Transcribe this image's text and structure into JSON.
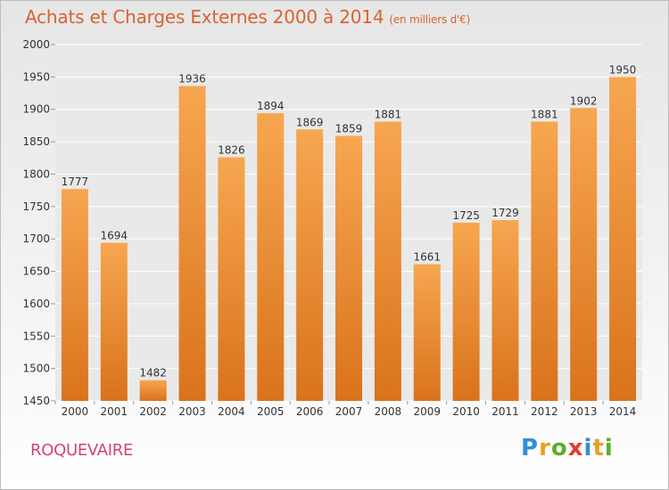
{
  "header": {
    "title": "Achats et Charges Externes 2000 à 2014",
    "subtitle": "(en milliers d'€)"
  },
  "footer": {
    "location": "ROQUEVAIRE",
    "logo": {
      "text": "Proxiti",
      "letters": [
        {
          "char": "P",
          "color": "#2f8fd8"
        },
        {
          "char": "r",
          "color": "#e8a020"
        },
        {
          "char": "o",
          "color": "#5cae2e"
        },
        {
          "char": "x",
          "color": "#e23c2c"
        },
        {
          "char": "i",
          "color": "#2f8fd8"
        },
        {
          "char": "t",
          "color": "#e8a020"
        },
        {
          "char": "i",
          "color": "#5cae2e"
        }
      ]
    }
  },
  "colors": {
    "bar_light": "#f7a650",
    "bar_dark": "#d9731c",
    "title": "#d9632f",
    "location": "#d4456a",
    "plot_background": "#e9e9e9"
  },
  "chart_data": {
    "type": "bar",
    "title": "Achats et Charges Externes 2000 à 2014",
    "subtitle": "(en milliers d'€)",
    "xlabel": "",
    "ylabel": "",
    "categories": [
      "2000",
      "2001",
      "2002",
      "2003",
      "2004",
      "2005",
      "2006",
      "2007",
      "2008",
      "2009",
      "2010",
      "2011",
      "2012",
      "2013",
      "2014"
    ],
    "values": [
      1777,
      1694,
      1482,
      1936,
      1826,
      1894,
      1869,
      1859,
      1881,
      1661,
      1725,
      1729,
      1881,
      1902,
      1950
    ],
    "ylim": [
      1450,
      2000
    ],
    "yticks": [
      1450,
      1500,
      1550,
      1600,
      1650,
      1700,
      1750,
      1800,
      1850,
      1900,
      1950,
      2000
    ],
    "grid": true,
    "data_labels": true,
    "legend": "none"
  }
}
